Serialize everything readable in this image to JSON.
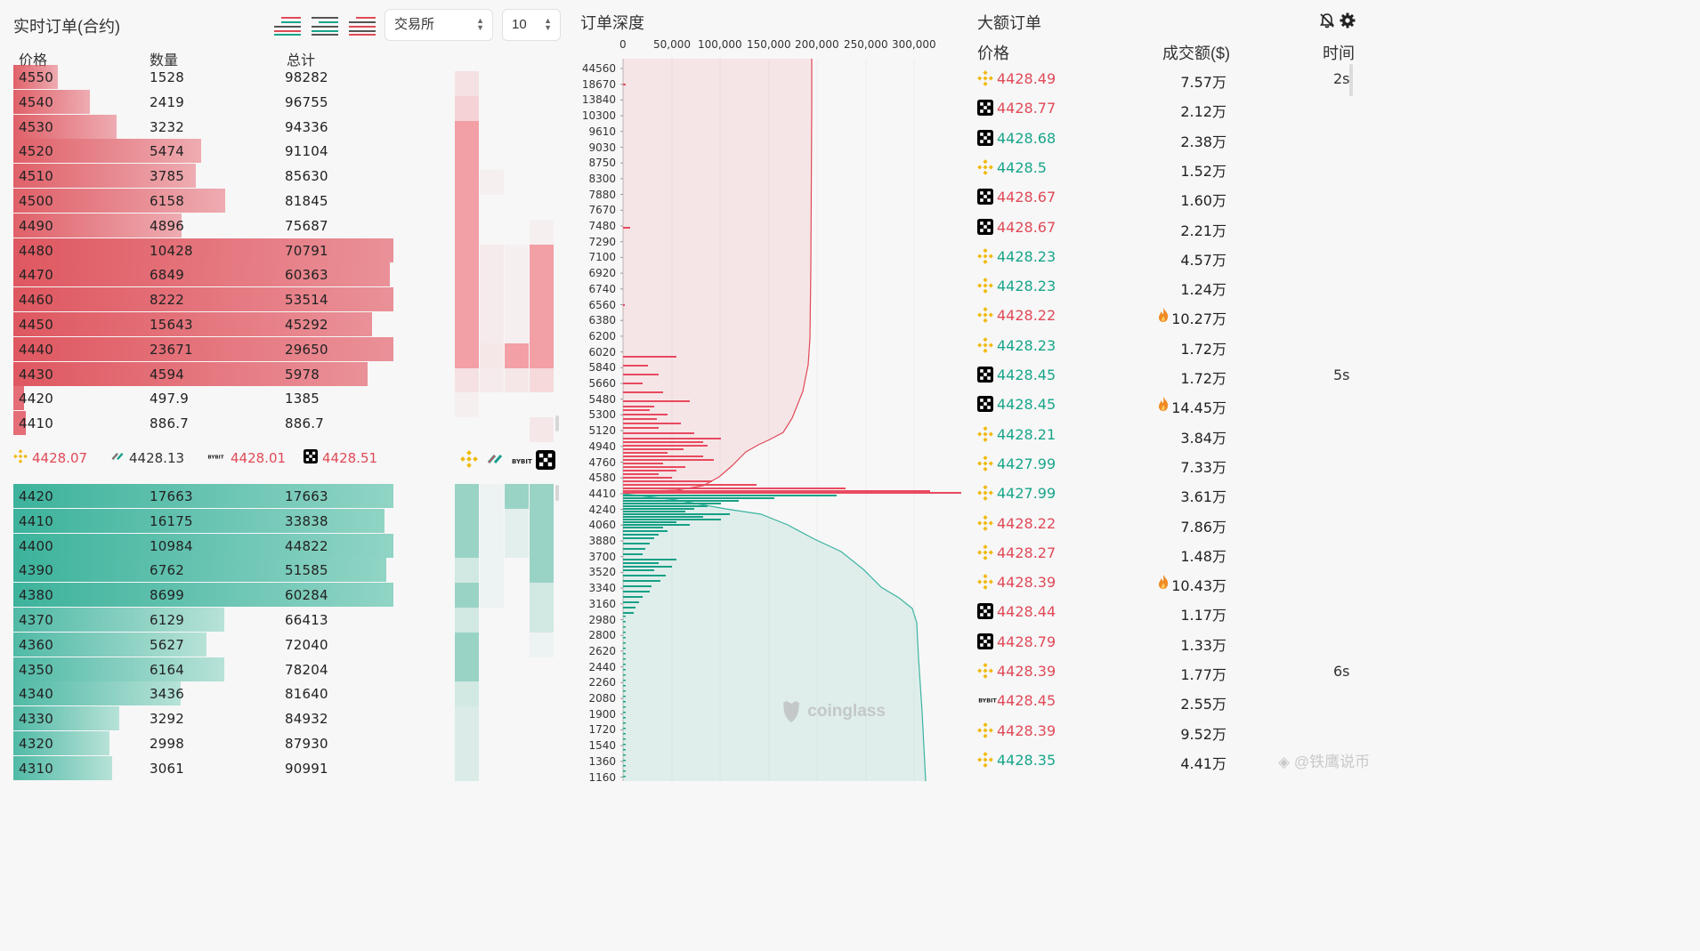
{
  "book": {
    "title": "实时订单(合约)",
    "exchange_select": "交易所",
    "depth_select": "10",
    "headers": {
      "price": "价格",
      "qty": "数量",
      "total": "总计"
    },
    "asks": [
      {
        "price": "4550",
        "qty": "1528",
        "total": "98282"
      },
      {
        "price": "4540",
        "qty": "2419",
        "total": "96755"
      },
      {
        "price": "4530",
        "qty": "3232",
        "total": "94336"
      },
      {
        "price": "4520",
        "qty": "5474",
        "total": "91104"
      },
      {
        "price": "4510",
        "qty": "3785",
        "total": "85630"
      },
      {
        "price": "4500",
        "qty": "6158",
        "total": "81845"
      },
      {
        "price": "4490",
        "qty": "4896",
        "total": "75687"
      },
      {
        "price": "4480",
        "qty": "10428",
        "total": "70791"
      },
      {
        "price": "4470",
        "qty": "6849",
        "total": "60363"
      },
      {
        "price": "4460",
        "qty": "8222",
        "total": "53514"
      },
      {
        "price": "4450",
        "qty": "15643",
        "total": "45292"
      },
      {
        "price": "4440",
        "qty": "23671",
        "total": "29650"
      },
      {
        "price": "4430",
        "qty": "4594",
        "total": "5978"
      },
      {
        "price": "4420",
        "qty": "497.9",
        "total": "1385"
      },
      {
        "price": "4410",
        "qty": "886.7",
        "total": "886.7"
      }
    ],
    "bids": [
      {
        "price": "4420",
        "qty": "17663",
        "total": "17663"
      },
      {
        "price": "4410",
        "qty": "16175",
        "total": "33838"
      },
      {
        "price": "4400",
        "qty": "10984",
        "total": "44822"
      },
      {
        "price": "4390",
        "qty": "6762",
        "total": "51585"
      },
      {
        "price": "4380",
        "qty": "8699",
        "total": "60284"
      },
      {
        "price": "4370",
        "qty": "6129",
        "total": "66413"
      },
      {
        "price": "4360",
        "qty": "5627",
        "total": "72040"
      },
      {
        "price": "4350",
        "qty": "6164",
        "total": "78204"
      },
      {
        "price": "4340",
        "qty": "3436",
        "total": "81640"
      },
      {
        "price": "4330",
        "qty": "3292",
        "total": "84932"
      },
      {
        "price": "4320",
        "qty": "2998",
        "total": "87930"
      },
      {
        "price": "4310",
        "qty": "3061",
        "total": "90991"
      }
    ],
    "spread": [
      {
        "exchange": "binance",
        "price": "4428.07",
        "color": "red"
      },
      {
        "exchange": "bitget",
        "price": "4428.13",
        "color": "dark"
      },
      {
        "exchange": "bybit",
        "price": "4428.01",
        "color": "red"
      },
      {
        "exchange": "okx",
        "price": "4428.51",
        "color": "red"
      }
    ],
    "colors": {
      "ask": "#e04a57",
      "bid": "#18a58a"
    }
  },
  "depth": {
    "title": "订单深度",
    "x_ticks": [
      "0",
      "50,000",
      "100,000",
      "150,000",
      "200,000",
      "250,000",
      "300,000"
    ],
    "y_ticks": [
      "44560",
      "18670",
      "13840",
      "10300",
      "9610",
      "9030",
      "8750",
      "8300",
      "7880",
      "7670",
      "7480",
      "7290",
      "7100",
      "6920",
      "6740",
      "6560",
      "6380",
      "6200",
      "6020",
      "5840",
      "5660",
      "5480",
      "5300",
      "5120",
      "4940",
      "4760",
      "4580",
      "4410",
      "4240",
      "4060",
      "3880",
      "3700",
      "3520",
      "3340",
      "3160",
      "2980",
      "2800",
      "2620",
      "2440",
      "2260",
      "2080",
      "1900",
      "1720",
      "1540",
      "1360",
      "1160"
    ],
    "watermark": "coinglass"
  },
  "large": {
    "title": "大额订单",
    "headers": {
      "price": "价格",
      "amount": "成交额($)",
      "time": "时间"
    },
    "orders": [
      {
        "exchange": "binance",
        "price": "4428.49",
        "side": "red",
        "amount": "7.57万",
        "fire": false,
        "time": "2s"
      },
      {
        "exchange": "okx",
        "price": "4428.77",
        "side": "red",
        "amount": "2.12万",
        "fire": false,
        "time": ""
      },
      {
        "exchange": "okx",
        "price": "4428.68",
        "side": "green",
        "amount": "2.38万",
        "fire": false,
        "time": ""
      },
      {
        "exchange": "binance",
        "price": "4428.5",
        "side": "green",
        "amount": "1.52万",
        "fire": false,
        "time": ""
      },
      {
        "exchange": "okx",
        "price": "4428.67",
        "side": "red",
        "amount": "1.60万",
        "fire": false,
        "time": ""
      },
      {
        "exchange": "okx",
        "price": "4428.67",
        "side": "red",
        "amount": "2.21万",
        "fire": false,
        "time": ""
      },
      {
        "exchange": "binance",
        "price": "4428.23",
        "side": "green",
        "amount": "4.57万",
        "fire": false,
        "time": ""
      },
      {
        "exchange": "binance",
        "price": "4428.23",
        "side": "green",
        "amount": "1.24万",
        "fire": false,
        "time": ""
      },
      {
        "exchange": "binance",
        "price": "4428.22",
        "side": "red",
        "amount": "10.27万",
        "fire": true,
        "time": ""
      },
      {
        "exchange": "binance",
        "price": "4428.23",
        "side": "green",
        "amount": "1.72万",
        "fire": false,
        "time": ""
      },
      {
        "exchange": "okx",
        "price": "4428.45",
        "side": "green",
        "amount": "1.72万",
        "fire": false,
        "time": "5s"
      },
      {
        "exchange": "okx",
        "price": "4428.45",
        "side": "green",
        "amount": "14.45万",
        "fire": true,
        "time": ""
      },
      {
        "exchange": "binance",
        "price": "4428.21",
        "side": "green",
        "amount": "3.84万",
        "fire": false,
        "time": ""
      },
      {
        "exchange": "binance",
        "price": "4427.99",
        "side": "green",
        "amount": "7.33万",
        "fire": false,
        "time": ""
      },
      {
        "exchange": "binance",
        "price": "4427.99",
        "side": "green",
        "amount": "3.61万",
        "fire": false,
        "time": ""
      },
      {
        "exchange": "binance",
        "price": "4428.22",
        "side": "red",
        "amount": "7.86万",
        "fire": false,
        "time": ""
      },
      {
        "exchange": "binance",
        "price": "4428.27",
        "side": "red",
        "amount": "1.48万",
        "fire": false,
        "time": ""
      },
      {
        "exchange": "binance",
        "price": "4428.39",
        "side": "red",
        "amount": "10.43万",
        "fire": true,
        "time": ""
      },
      {
        "exchange": "okx",
        "price": "4428.44",
        "side": "red",
        "amount": "1.17万",
        "fire": false,
        "time": ""
      },
      {
        "exchange": "okx",
        "price": "4428.79",
        "side": "red",
        "amount": "1.33万",
        "fire": false,
        "time": ""
      },
      {
        "exchange": "binance",
        "price": "4428.39",
        "side": "red",
        "amount": "1.77万",
        "fire": false,
        "time": "6s"
      },
      {
        "exchange": "bybit",
        "price": "4428.45",
        "side": "red",
        "amount": "2.55万",
        "fire": false,
        "time": ""
      },
      {
        "exchange": "binance",
        "price": "4428.39",
        "side": "red",
        "amount": "9.52万",
        "fire": false,
        "time": ""
      },
      {
        "exchange": "binance",
        "price": "4428.35",
        "side": "green",
        "amount": "4.41万",
        "fire": false,
        "time": ""
      }
    ],
    "watermark": "@铁鹰说币"
  }
}
